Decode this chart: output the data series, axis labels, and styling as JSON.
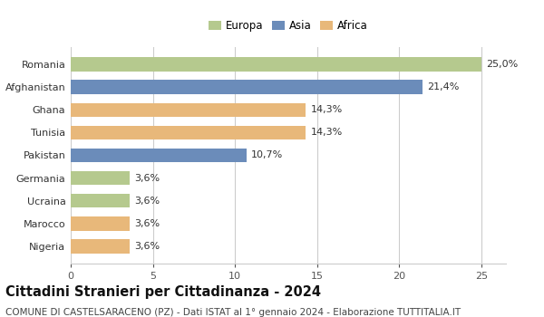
{
  "categories": [
    "Nigeria",
    "Marocco",
    "Ucraina",
    "Germania",
    "Pakistan",
    "Tunisia",
    "Ghana",
    "Afghanistan",
    "Romania"
  ],
  "values": [
    3.6,
    3.6,
    3.6,
    3.6,
    10.7,
    14.3,
    14.3,
    21.4,
    25.0
  ],
  "continents": [
    "Africa",
    "Africa",
    "Europa",
    "Europa",
    "Asia",
    "Africa",
    "Africa",
    "Asia",
    "Europa"
  ],
  "colors": {
    "Europa": "#b5c98e",
    "Asia": "#6b8cba",
    "Africa": "#e8b87a"
  },
  "labels": [
    "3,6%",
    "3,6%",
    "3,6%",
    "3,6%",
    "10,7%",
    "14,3%",
    "14,3%",
    "21,4%",
    "25,0%"
  ],
  "title": "Cittadini Stranieri per Cittadinanza - 2024",
  "subtitle": "COMUNE DI CASTELSARACENO (PZ) - Dati ISTAT al 1° gennaio 2024 - Elaborazione TUTTITALIA.IT",
  "xlim": [
    0,
    26.5
  ],
  "xticks": [
    0,
    5,
    10,
    15,
    20,
    25
  ],
  "legend_labels": [
    "Europa",
    "Asia",
    "Africa"
  ],
  "legend_colors": [
    "#b5c98e",
    "#6b8cba",
    "#e8b87a"
  ],
  "background_color": "#ffffff",
  "bar_height": 0.62,
  "label_fontsize": 8,
  "title_fontsize": 10.5,
  "subtitle_fontsize": 7.5,
  "tick_fontsize": 8,
  "legend_fontsize": 8.5,
  "grid_color": "#cccccc"
}
